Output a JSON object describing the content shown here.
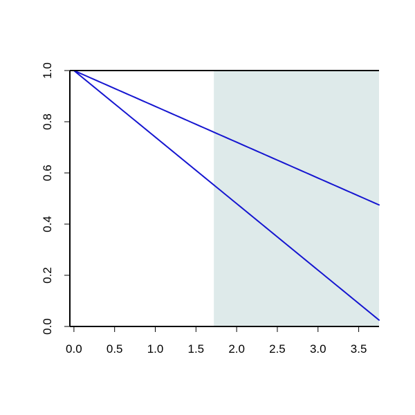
{
  "chart_data": {
    "type": "line",
    "title": "",
    "xlabel": "",
    "ylabel": "",
    "xlim": [
      -0.05,
      3.75
    ],
    "ylim": [
      0.0,
      1.0
    ],
    "x_ticks": [
      "0.0",
      "0.5",
      "1.0",
      "1.5",
      "2.0",
      "2.5",
      "3.0",
      "3.5"
    ],
    "y_ticks": [
      "0.0",
      "0.2",
      "0.4",
      "0.6",
      "0.8",
      "1.0"
    ],
    "shaded_region": {
      "x_from": 1.72,
      "x_to": 3.75,
      "color": "#deeaea"
    },
    "grid": false,
    "legend": "none",
    "colors": {
      "blue": "#1515d0",
      "red": "#ff0000",
      "green": "#00ee00",
      "axis": "#000000"
    },
    "x_samples": [
      0,
      0.05,
      0.1,
      0.15,
      0.2,
      0.25,
      0.3,
      0.35,
      0.4,
      0.45,
      0.5,
      0.55,
      0.6,
      0.65,
      0.7,
      0.75,
      0.8,
      0.85,
      0.9,
      0.95,
      1.0,
      1.05,
      1.1,
      1.15,
      1.2,
      1.25,
      1.3,
      1.35,
      1.4,
      1.45,
      1.5,
      1.55,
      1.6,
      1.65,
      1.7,
      1.75,
      1.8,
      1.85,
      1.9,
      1.95,
      2.0,
      2.05,
      2.1,
      2.15,
      2.2,
      2.25,
      2.3,
      2.35,
      2.4,
      2.45,
      2.5,
      2.55,
      2.6,
      2.65,
      2.7,
      2.75,
      2.8,
      2.85,
      2.9,
      2.95,
      3.0,
      3.05,
      3.1,
      3.15,
      3.2,
      3.25,
      3.3,
      3.35,
      3.4,
      3.45,
      3.5,
      3.55,
      3.6,
      3.65,
      3.7,
      3.75
    ],
    "series": [
      {
        "color": "blue",
        "width": 2,
        "values": [
          1.0,
          0.987,
          0.974,
          0.961,
          0.948,
          0.935,
          0.922,
          0.909,
          0.896,
          0.883,
          0.87,
          0.857,
          0.844,
          0.831,
          0.818,
          0.805,
          0.792,
          0.779,
          0.766,
          0.753,
          0.74,
          0.727,
          0.714,
          0.701,
          0.688,
          0.675,
          0.662,
          0.649,
          0.636,
          0.623,
          0.61,
          0.597,
          0.584,
          0.571,
          0.558,
          0.545,
          0.532,
          0.519,
          0.506,
          0.493,
          0.48,
          0.467,
          0.454,
          0.441,
          0.428,
          0.415,
          0.402,
          0.389,
          0.376,
          0.363,
          0.35,
          0.337,
          0.324,
          0.311,
          0.298,
          0.285,
          0.272,
          0.259,
          0.246,
          0.233,
          0.22,
          0.207,
          0.194,
          0.181,
          0.168,
          0.155,
          0.142,
          0.129,
          0.116,
          0.103,
          0.09,
          0.077,
          0.064,
          0.051,
          0.038,
          0.025
        ]
      },
      {
        "color": "blue",
        "width": 2,
        "values": [
          1.0,
          0.993,
          0.986,
          0.979,
          0.972,
          0.965,
          0.958,
          0.951,
          0.944,
          0.937,
          0.93,
          0.923,
          0.916,
          0.909,
          0.902,
          0.895,
          0.888,
          0.881,
          0.874,
          0.867,
          0.86,
          0.853,
          0.846,
          0.839,
          0.832,
          0.825,
          0.818,
          0.811,
          0.804,
          0.797,
          0.79,
          0.783,
          0.776,
          0.769,
          0.762,
          0.755,
          0.748,
          0.741,
          0.734,
          0.727,
          0.72,
          0.713,
          0.706,
          0.699,
          0.692,
          0.685,
          0.678,
          0.671,
          0.664,
          0.657,
          0.65,
          0.643,
          0.636,
          0.629,
          0.622,
          0.615,
          0.608,
          0.601,
          0.594,
          0.587,
          0.58,
          0.573,
          0.566,
          0.559,
          0.552,
          0.545,
          0.538,
          0.531,
          0.524,
          0.517,
          0.51,
          0.503,
          0.496,
          0.489,
          0.482,
          0.475
        ]
      }
    ],
    "axis_title": {
      "x": "",
      "y": ""
    }
  }
}
